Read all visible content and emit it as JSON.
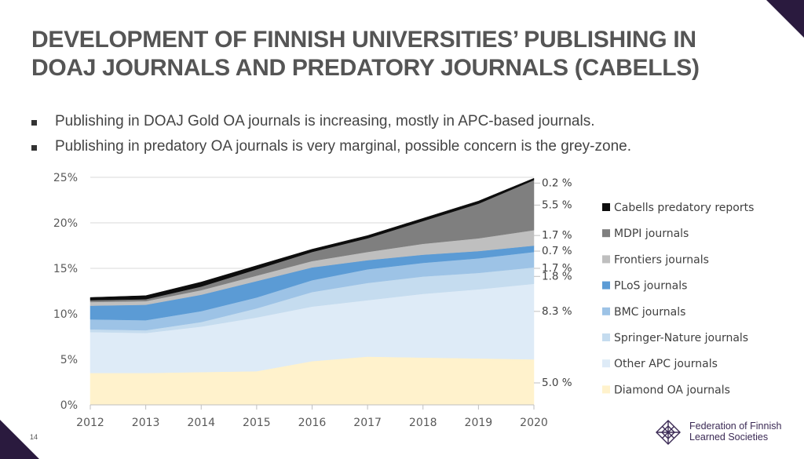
{
  "title": {
    "line1": "DEVELOPMENT OF FINNISH UNIVERSITIES’ PUBLISHING IN",
    "line2": "DOAJ JOURNALS AND PREDATORY JOURNALS (CABELLS)"
  },
  "bullets": [
    "Publishing in DOAJ Gold OA journals is increasing, mostly in APC-based journals.",
    "Publishing in predatory OA journals is very marginal, possible concern is the grey-zone."
  ],
  "page_number": "14",
  "logo": {
    "line1": "Federation of Finnish",
    "line2": "Learned Societies"
  },
  "colors": {
    "diamond": "#FFF2CC",
    "other_apc": "#DEEBF7",
    "springer": "#C5DCEF",
    "bmc": "#9DC3E6",
    "plos": "#5B9BD5",
    "frontiers": "#BFBFBF",
    "mdpi": "#7F7F7F",
    "cabells": "#0D0D0D",
    "logo": "#3b2a55"
  },
  "chart_data": {
    "type": "area",
    "stacked": true,
    "x": [
      2012,
      2013,
      2014,
      2015,
      2016,
      2017,
      2018,
      2019,
      2020
    ],
    "ylim": [
      0,
      25
    ],
    "yticks": [
      "0%",
      "5%",
      "10%",
      "15%",
      "20%",
      "25%"
    ],
    "ytick_values": [
      0,
      5,
      10,
      15,
      20,
      25
    ],
    "grid": true,
    "legend_position": "right",
    "series": [
      {
        "name": "Diamond OA journals",
        "color_key": "diamond",
        "values": [
          3.5,
          3.5,
          3.6,
          3.7,
          4.8,
          5.3,
          5.2,
          5.1,
          5.0
        ],
        "end_label": "5.0 %"
      },
      {
        "name": "Other APC journals",
        "color_key": "other_apc",
        "values": [
          4.5,
          4.4,
          5.0,
          5.9,
          6.0,
          6.2,
          7.0,
          7.6,
          8.3
        ],
        "end_label": "8.3 %"
      },
      {
        "name": "Springer-Nature journals",
        "color_key": "springer",
        "values": [
          0.3,
          0.3,
          0.5,
          1.0,
          1.6,
          1.9,
          1.9,
          1.8,
          1.8
        ],
        "end_label": "1.8 %"
      },
      {
        "name": "BMC journals",
        "color_key": "bmc",
        "values": [
          1.1,
          1.1,
          1.2,
          1.2,
          1.3,
          1.5,
          1.5,
          1.6,
          1.7
        ],
        "end_label": "1.7 %"
      },
      {
        "name": "PLoS journals",
        "color_key": "plos",
        "values": [
          1.5,
          1.7,
          1.8,
          1.8,
          1.4,
          1.0,
          0.9,
          0.8,
          0.7
        ],
        "end_label": "0.7 %"
      },
      {
        "name": "Frontiers journals",
        "color_key": "frontiers",
        "values": [
          0.4,
          0.4,
          0.5,
          0.6,
          0.7,
          0.9,
          1.2,
          1.4,
          1.7
        ],
        "end_label": "1.7 %"
      },
      {
        "name": "MDPI journals",
        "color_key": "mdpi",
        "values": [
          0.2,
          0.2,
          0.4,
          0.7,
          1.0,
          1.5,
          2.5,
          3.8,
          5.5
        ],
        "end_label": "5.5 %"
      },
      {
        "name": "Cabells predatory reports",
        "color_key": "cabells",
        "values": [
          0.3,
          0.4,
          0.5,
          0.4,
          0.3,
          0.3,
          0.3,
          0.3,
          0.2
        ],
        "end_label": "0.2 %"
      }
    ]
  }
}
